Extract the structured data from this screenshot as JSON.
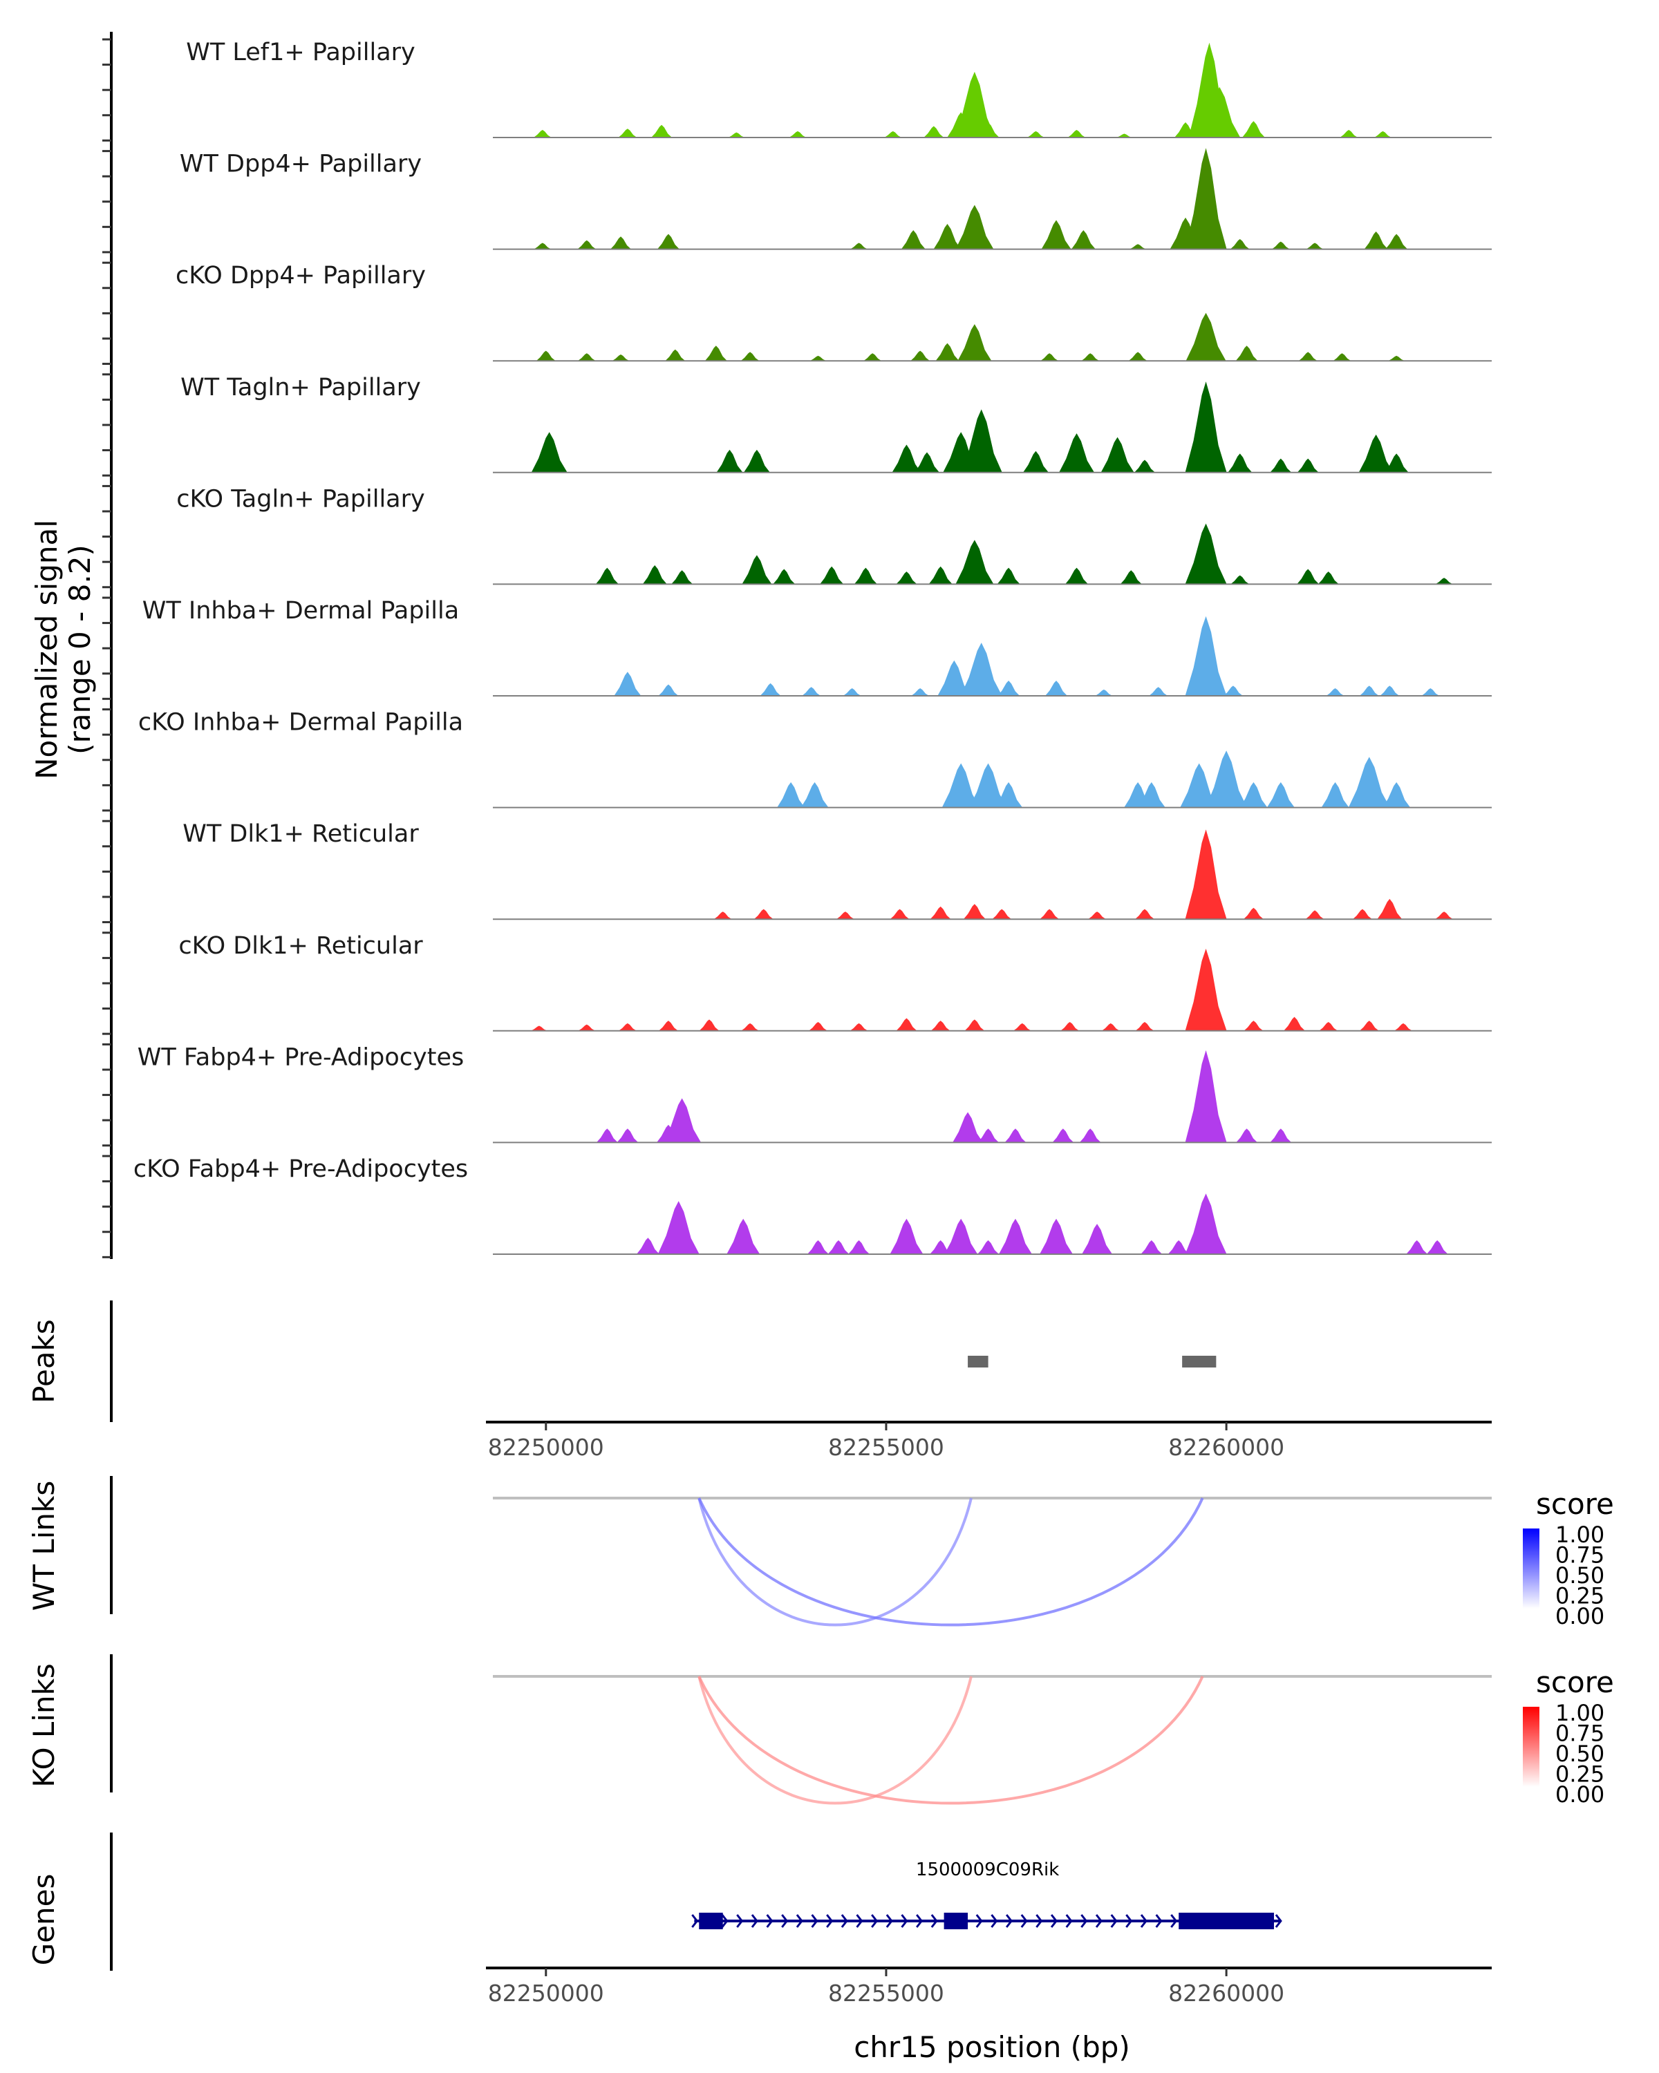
{
  "chart_data": {
    "type": "area",
    "title": "",
    "region": {
      "chrom": "chr15",
      "start": 82249220,
      "end": 82263900
    },
    "xlabel": "chr15 position (bp)",
    "xticks": [
      82250000,
      82255000,
      82260000
    ],
    "xtick_labels": [
      "82250000",
      "82255000",
      "82260000"
    ],
    "ylabel_line1": "Normalized signal",
    "ylabel_line2": "(range 0 - 8.2)",
    "ylim": [
      0,
      8.2
    ],
    "coverage_tracks": [
      {
        "name": "WT Lef1+ Papillary",
        "color": "#66CC00",
        "peaks": [
          [
            82249950,
            0.6
          ],
          [
            82251200,
            0.7
          ],
          [
            82251700,
            1.0
          ],
          [
            82252800,
            0.4
          ],
          [
            82253700,
            0.5
          ],
          [
            82255100,
            0.5
          ],
          [
            82255700,
            0.9
          ],
          [
            82256100,
            2.0
          ],
          [
            82256300,
            5.2
          ],
          [
            82256500,
            1.2
          ],
          [
            82257200,
            0.5
          ],
          [
            82257800,
            0.6
          ],
          [
            82258500,
            0.3
          ],
          [
            82259400,
            1.2
          ],
          [
            82259750,
            7.5
          ],
          [
            82259900,
            4.0
          ],
          [
            82260400,
            1.3
          ],
          [
            82261800,
            0.6
          ],
          [
            82262300,
            0.5
          ]
        ]
      },
      {
        "name": "WT Dpp4+ Papillary",
        "color": "#458B00",
        "peaks": [
          [
            82249950,
            0.5
          ],
          [
            82250600,
            0.7
          ],
          [
            82251100,
            1.0
          ],
          [
            82251800,
            1.2
          ],
          [
            82254600,
            0.5
          ],
          [
            82255400,
            1.5
          ],
          [
            82255900,
            2.0
          ],
          [
            82256300,
            3.5
          ],
          [
            82257500,
            2.3
          ],
          [
            82257900,
            1.5
          ],
          [
            82258700,
            0.4
          ],
          [
            82259400,
            2.5
          ],
          [
            82259700,
            8.0
          ],
          [
            82260200,
            0.8
          ],
          [
            82260800,
            0.6
          ],
          [
            82261300,
            0.5
          ],
          [
            82262200,
            1.4
          ],
          [
            82262500,
            1.2
          ]
        ]
      },
      {
        "name": "cKO Dpp4+ Papillary",
        "color": "#458B00",
        "peaks": [
          [
            82250000,
            0.8
          ],
          [
            82250600,
            0.6
          ],
          [
            82251100,
            0.5
          ],
          [
            82251900,
            0.9
          ],
          [
            82252500,
            1.2
          ],
          [
            82253000,
            0.7
          ],
          [
            82254000,
            0.4
          ],
          [
            82254800,
            0.6
          ],
          [
            82255500,
            0.8
          ],
          [
            82255900,
            1.4
          ],
          [
            82256300,
            2.9
          ],
          [
            82257400,
            0.6
          ],
          [
            82258000,
            0.6
          ],
          [
            82258700,
            0.7
          ],
          [
            82259700,
            3.8
          ],
          [
            82260300,
            1.2
          ],
          [
            82261200,
            0.7
          ],
          [
            82261700,
            0.6
          ],
          [
            82262500,
            0.4
          ]
        ]
      },
      {
        "name": "WT Tagln+ Papillary",
        "color": "#006400",
        "peaks": [
          [
            82250050,
            3.2
          ],
          [
            82252700,
            1.8
          ],
          [
            82253100,
            1.8
          ],
          [
            82255300,
            2.2
          ],
          [
            82255600,
            1.6
          ],
          [
            82256100,
            3.2
          ],
          [
            82256400,
            5.0
          ],
          [
            82257200,
            1.7
          ],
          [
            82257800,
            3.1
          ],
          [
            82258400,
            2.8
          ],
          [
            82258800,
            1.0
          ],
          [
            82259700,
            7.2
          ],
          [
            82260200,
            1.5
          ],
          [
            82260800,
            1.1
          ],
          [
            82261200,
            1.1
          ],
          [
            82262200,
            3.0
          ],
          [
            82262500,
            1.5
          ]
        ]
      },
      {
        "name": "cKO Tagln+ Papillary",
        "color": "#006400",
        "peaks": [
          [
            82250900,
            1.3
          ],
          [
            82251600,
            1.5
          ],
          [
            82252000,
            1.1
          ],
          [
            82253100,
            2.3
          ],
          [
            82253500,
            1.2
          ],
          [
            82254200,
            1.4
          ],
          [
            82254700,
            1.3
          ],
          [
            82255300,
            1.0
          ],
          [
            82255800,
            1.4
          ],
          [
            82256300,
            3.5
          ],
          [
            82256800,
            1.3
          ],
          [
            82257800,
            1.3
          ],
          [
            82258600,
            1.1
          ],
          [
            82259700,
            4.8
          ],
          [
            82260200,
            0.7
          ],
          [
            82261200,
            1.2
          ],
          [
            82261500,
            1.0
          ],
          [
            82263200,
            0.5
          ]
        ]
      },
      {
        "name": "WT Inhba+ Dermal Papilla",
        "color": "#5DADE8",
        "peaks": [
          [
            82251200,
            1.9
          ],
          [
            82251800,
            0.9
          ],
          [
            82253300,
            1.0
          ],
          [
            82253900,
            0.7
          ],
          [
            82254500,
            0.6
          ],
          [
            82255500,
            0.6
          ],
          [
            82256000,
            2.8
          ],
          [
            82256400,
            4.2
          ],
          [
            82256800,
            1.2
          ],
          [
            82257500,
            1.2
          ],
          [
            82258200,
            0.5
          ],
          [
            82259000,
            0.7
          ],
          [
            82259700,
            6.3
          ],
          [
            82260100,
            0.8
          ],
          [
            82261600,
            0.6
          ],
          [
            82262100,
            0.8
          ],
          [
            82262400,
            0.8
          ],
          [
            82263000,
            0.6
          ]
        ]
      },
      {
        "name": "cKO Inhba+ Dermal Papilla",
        "color": "#5DADE8",
        "peaks": [
          [
            82253600,
            2.0
          ],
          [
            82253950,
            2.0
          ],
          [
            82256100,
            3.5
          ],
          [
            82256500,
            3.5
          ],
          [
            82256800,
            2.0
          ],
          [
            82258700,
            2.0
          ],
          [
            82258900,
            2.0
          ],
          [
            82259600,
            3.5
          ],
          [
            82260000,
            4.5
          ],
          [
            82260400,
            2.0
          ],
          [
            82260800,
            2.0
          ],
          [
            82261600,
            2.0
          ],
          [
            82262100,
            4.0
          ],
          [
            82262500,
            2.0
          ]
        ]
      },
      {
        "name": "WT Dlk1+ Reticular",
        "color": "#FF3030",
        "peaks": [
          [
            82252600,
            0.6
          ],
          [
            82253200,
            0.8
          ],
          [
            82254400,
            0.6
          ],
          [
            82255200,
            0.8
          ],
          [
            82255800,
            1.0
          ],
          [
            82256300,
            1.2
          ],
          [
            82256700,
            0.8
          ],
          [
            82257400,
            0.8
          ],
          [
            82258100,
            0.6
          ],
          [
            82258800,
            0.8
          ],
          [
            82259700,
            7.1
          ],
          [
            82260400,
            0.9
          ],
          [
            82261300,
            0.7
          ],
          [
            82262000,
            0.8
          ],
          [
            82262400,
            1.6
          ],
          [
            82263200,
            0.6
          ]
        ]
      },
      {
        "name": "cKO Dlk1+ Reticular",
        "color": "#FF3030",
        "peaks": [
          [
            82249900,
            0.4
          ],
          [
            82250600,
            0.5
          ],
          [
            82251200,
            0.6
          ],
          [
            82251800,
            0.8
          ],
          [
            82252400,
            0.9
          ],
          [
            82253000,
            0.6
          ],
          [
            82254000,
            0.7
          ],
          [
            82254600,
            0.6
          ],
          [
            82255300,
            1.0
          ],
          [
            82255800,
            0.8
          ],
          [
            82256300,
            0.9
          ],
          [
            82257000,
            0.6
          ],
          [
            82257700,
            0.7
          ],
          [
            82258300,
            0.6
          ],
          [
            82258800,
            0.7
          ],
          [
            82259700,
            6.5
          ],
          [
            82260400,
            0.8
          ],
          [
            82261000,
            1.1
          ],
          [
            82261500,
            0.7
          ],
          [
            82262100,
            0.8
          ],
          [
            82262600,
            0.6
          ]
        ]
      },
      {
        "name": "WT Fabp4+ Pre-Adipocytes",
        "color": "#B23CEC",
        "peaks": [
          [
            82250900,
            1.1
          ],
          [
            82251200,
            1.1
          ],
          [
            82251800,
            1.4
          ],
          [
            82252000,
            3.5
          ],
          [
            82256200,
            2.4
          ],
          [
            82256500,
            1.1
          ],
          [
            82256900,
            1.1
          ],
          [
            82257600,
            1.1
          ],
          [
            82258000,
            1.1
          ],
          [
            82259700,
            7.3
          ],
          [
            82260300,
            1.1
          ],
          [
            82260800,
            1.1
          ]
        ]
      },
      {
        "name": "cKO Fabp4+ Pre-Adipocytes",
        "color": "#B23CEC",
        "peaks": [
          [
            82251500,
            1.3
          ],
          [
            82251950,
            4.2
          ],
          [
            82252900,
            2.8
          ],
          [
            82254000,
            1.1
          ],
          [
            82254300,
            1.1
          ],
          [
            82254600,
            1.1
          ],
          [
            82255300,
            2.8
          ],
          [
            82255800,
            1.1
          ],
          [
            82256100,
            2.8
          ],
          [
            82256500,
            1.1
          ],
          [
            82256900,
            2.8
          ],
          [
            82257500,
            2.8
          ],
          [
            82258100,
            2.4
          ],
          [
            82258900,
            1.1
          ],
          [
            82259300,
            1.1
          ],
          [
            82259700,
            4.8
          ],
          [
            82262800,
            1.1
          ],
          [
            82263100,
            1.1
          ]
        ]
      }
    ],
    "peaks_track": {
      "label": "Peaks",
      "color": "#666666",
      "regions": [
        [
          82256200,
          82256500
        ],
        [
          82259350,
          82259850
        ]
      ]
    },
    "links_tracks": [
      {
        "label": "WT Links",
        "legend_title": "score",
        "legend_ticks": [
          "1.00",
          "0.75",
          "0.50",
          "0.25",
          "0.00"
        ],
        "low_color": "#FFFFFF",
        "high_color": "#0000FF",
        "links": [
          {
            "start": 82252250,
            "end": 82256250,
            "score": 0.45
          },
          {
            "start": 82252250,
            "end": 82259650,
            "score": 0.55
          }
        ]
      },
      {
        "label": "KO Links",
        "legend_title": "score",
        "legend_ticks": [
          "1.00",
          "0.75",
          "0.50",
          "0.25",
          "0.00"
        ],
        "low_color": "#FFFFFF",
        "high_color": "#FF0000",
        "links": [
          {
            "start": 82252250,
            "end": 82256250,
            "score": 0.4
          },
          {
            "start": 82252250,
            "end": 82259650,
            "score": 0.45
          }
        ]
      }
    ],
    "genes_track": {
      "label": "Genes",
      "color": "#00008B",
      "genes": [
        {
          "name": "1500009C09Rik",
          "strand": "+",
          "start": 82252180,
          "end": 82260800,
          "exons": [
            [
              82252250,
              82252600
            ],
            [
              82255850,
              82256200
            ],
            [
              82259300,
              82260700
            ]
          ]
        }
      ]
    },
    "legend_placement": "right"
  }
}
